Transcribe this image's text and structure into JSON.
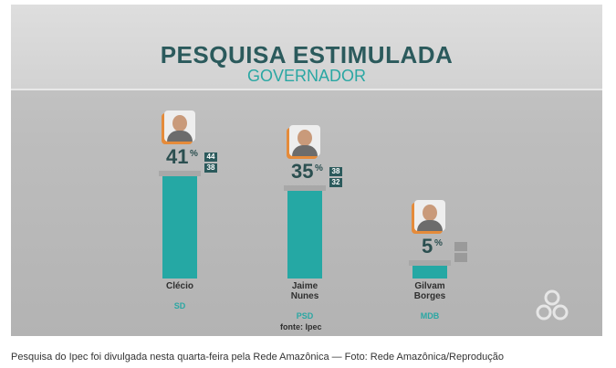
{
  "chart_data": {
    "type": "bar",
    "title": "PESQUISA ESTIMULADA",
    "subtitle": "GOVERNADOR",
    "categories": [
      "Clécio",
      "Jaime Nunes",
      "Gilvam Borges"
    ],
    "parties": [
      "SD",
      "PSD",
      "MDB"
    ],
    "values": [
      41,
      35,
      5
    ],
    "unit": "%",
    "upper": [
      44,
      38,
      null
    ],
    "lower": [
      38,
      32,
      null
    ],
    "color": "#25a8a4",
    "source": "fonte: Ipec"
  },
  "caption": "Pesquisa do Ipec foi divulgada nesta quarta-feira pela Rede Amazônica — Foto: Rede Amazônica/Reprodução"
}
